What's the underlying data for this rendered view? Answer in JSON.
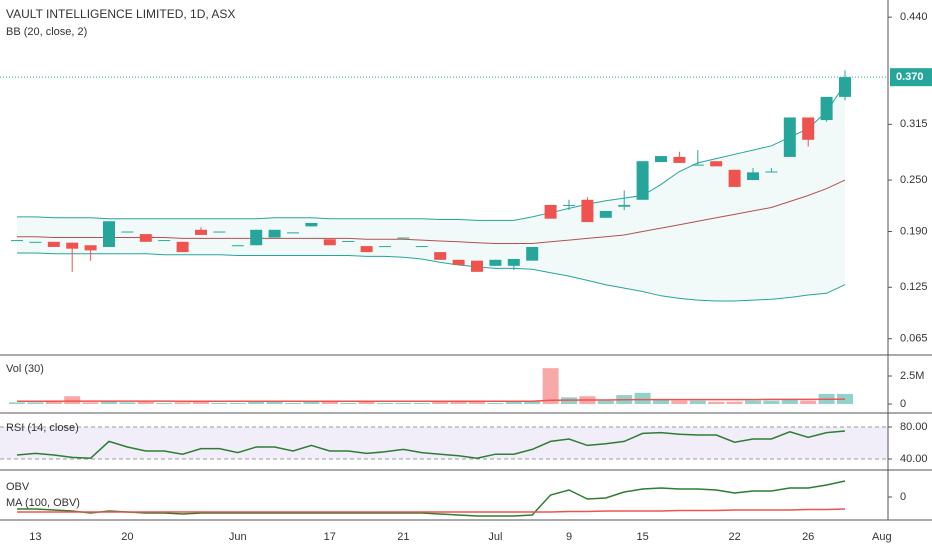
{
  "chart_data": [
    {
      "type": "candlestick",
      "title": "VAULT INTELLIGENCE LIMITED, 1D, ASX",
      "categories": [
        null,
        "13",
        null,
        null,
        null,
        null,
        "20",
        null,
        null,
        null,
        null,
        null,
        "Jun",
        null,
        null,
        null,
        null,
        "17",
        null,
        null,
        null,
        "21",
        null,
        null,
        null,
        null,
        "Jul",
        null,
        null,
        null,
        "9",
        null,
        null,
        null,
        "15",
        null,
        null,
        null,
        null,
        "22",
        null,
        null,
        null,
        "26",
        null,
        null
      ],
      "x_end_label": "Aug",
      "open": [
        0.18,
        0.178,
        0.178,
        0.177,
        0.174,
        0.172,
        0.19,
        0.187,
        0.18,
        0.178,
        0.192,
        0.19,
        0.174,
        0.174,
        0.183,
        0.189,
        0.196,
        0.181,
        0.179,
        0.173,
        0.173,
        0.183,
        0.173,
        0.166,
        0.157,
        0.156,
        0.15,
        0.15,
        0.156,
        0.221,
        0.221,
        0.227,
        0.206,
        0.219,
        0.227,
        0.271,
        0.277,
        0.268,
        0.272,
        0.262,
        0.25,
        0.26,
        0.277,
        0.323,
        0.32,
        0.347
      ],
      "high": [
        0.18,
        0.178,
        0.178,
        0.177,
        0.174,
        0.202,
        0.19,
        0.187,
        0.18,
        0.178,
        0.195,
        0.19,
        0.174,
        0.192,
        0.192,
        0.189,
        0.2,
        0.181,
        0.179,
        0.173,
        0.173,
        0.183,
        0.173,
        0.166,
        0.157,
        0.156,
        0.157,
        0.158,
        0.172,
        0.221,
        0.227,
        0.23,
        0.214,
        0.238,
        0.272,
        0.278,
        0.283,
        0.285,
        0.272,
        0.262,
        0.264,
        0.264,
        0.323,
        0.323,
        0.347,
        0.378
      ],
      "low": [
        0.18,
        0.178,
        0.172,
        0.143,
        0.156,
        0.172,
        0.19,
        0.178,
        0.18,
        0.166,
        0.186,
        0.19,
        0.174,
        0.174,
        0.183,
        0.189,
        0.196,
        0.174,
        0.179,
        0.166,
        0.173,
        0.183,
        0.173,
        0.157,
        0.151,
        0.143,
        0.15,
        0.145,
        0.156,
        0.205,
        0.215,
        0.201,
        0.206,
        0.215,
        0.227,
        0.271,
        0.27,
        0.268,
        0.266,
        0.242,
        0.25,
        0.26,
        0.277,
        0.289,
        0.318,
        0.343
      ],
      "close": [
        0.18,
        0.178,
        0.172,
        0.17,
        0.168,
        0.202,
        0.19,
        0.178,
        0.18,
        0.166,
        0.186,
        0.19,
        0.174,
        0.192,
        0.192,
        0.189,
        0.2,
        0.174,
        0.179,
        0.166,
        0.173,
        0.183,
        0.173,
        0.157,
        0.151,
        0.143,
        0.157,
        0.158,
        0.172,
        0.205,
        0.221,
        0.201,
        0.214,
        0.221,
        0.272,
        0.278,
        0.27,
        0.268,
        0.266,
        0.242,
        0.259,
        0.26,
        0.323,
        0.297,
        0.347,
        0.37
      ],
      "up_color": "#26a69a",
      "down_color": "#ef5350",
      "overlay": {
        "label": "BB (20, close, 2)",
        "band_color": "#26a69a",
        "basis_color": "#b2514f",
        "upper": [
          0.207,
          0.207,
          0.206,
          0.206,
          0.206,
          0.205,
          0.205,
          0.205,
          0.205,
          0.205,
          0.205,
          0.205,
          0.205,
          0.205,
          0.206,
          0.206,
          0.206,
          0.205,
          0.205,
          0.205,
          0.205,
          0.205,
          0.205,
          0.204,
          0.204,
          0.203,
          0.203,
          0.203,
          0.207,
          0.212,
          0.217,
          0.222,
          0.226,
          0.229,
          0.232,
          0.245,
          0.26,
          0.27,
          0.275,
          0.28,
          0.285,
          0.29,
          0.3,
          0.31,
          0.33,
          0.362
        ],
        "basis": [
          0.184,
          0.184,
          0.183,
          0.183,
          0.183,
          0.183,
          0.183,
          0.183,
          0.183,
          0.182,
          0.182,
          0.182,
          0.182,
          0.182,
          0.182,
          0.182,
          0.182,
          0.182,
          0.182,
          0.181,
          0.181,
          0.181,
          0.18,
          0.179,
          0.178,
          0.177,
          0.176,
          0.176,
          0.176,
          0.178,
          0.18,
          0.182,
          0.184,
          0.186,
          0.19,
          0.194,
          0.198,
          0.202,
          0.206,
          0.21,
          0.214,
          0.218,
          0.225,
          0.232,
          0.24,
          0.25
        ],
        "lower": [
          0.165,
          0.165,
          0.164,
          0.164,
          0.164,
          0.164,
          0.164,
          0.164,
          0.163,
          0.163,
          0.163,
          0.163,
          0.162,
          0.162,
          0.162,
          0.162,
          0.162,
          0.162,
          0.162,
          0.161,
          0.161,
          0.16,
          0.158,
          0.154,
          0.151,
          0.149,
          0.147,
          0.147,
          0.146,
          0.142,
          0.138,
          0.133,
          0.128,
          0.124,
          0.12,
          0.115,
          0.112,
          0.11,
          0.109,
          0.109,
          0.11,
          0.111,
          0.113,
          0.116,
          0.118,
          0.128
        ]
      },
      "ylim": [
        0.046,
        0.46
      ],
      "yticks": [
        0.065,
        0.125,
        {
          "value": 0.19,
          "label": "0.190"
        },
        {
          "value": 0.25,
          "label": "0.250"
        },
        0.315,
        {
          "value": 0.44,
          "label": "0.440"
        }
      ],
      "last_price": {
        "value": 0.37,
        "label": "0.370"
      }
    },
    {
      "type": "bar",
      "title": "Vol (30)",
      "values": [
        150000,
        150000,
        200000,
        700000,
        150000,
        300000,
        150000,
        200000,
        100000,
        150000,
        200000,
        100000,
        100000,
        200000,
        200000,
        100000,
        200000,
        200000,
        100000,
        200000,
        100000,
        100000,
        100000,
        200000,
        200000,
        200000,
        100000,
        200000,
        300000,
        3200000,
        600000,
        700000,
        300000,
        800000,
        1000000,
        400000,
        300000,
        300000,
        200000,
        200000,
        300000,
        300000,
        400000,
        300000,
        900000,
        900000
      ],
      "ma_values": [
        250000,
        250000,
        250000,
        260000,
        260000,
        260000,
        260000,
        260000,
        260000,
        250000,
        250000,
        250000,
        250000,
        250000,
        250000,
        250000,
        240000,
        240000,
        240000,
        240000,
        240000,
        240000,
        240000,
        240000,
        240000,
        240000,
        240000,
        240000,
        240000,
        340000,
        350000,
        360000,
        360000,
        380000,
        400000,
        400000,
        400000,
        400000,
        400000,
        400000,
        400000,
        410000,
        410000,
        410000,
        430000,
        440000
      ],
      "ma_color": "#ef5350",
      "up_color": "#26a69a",
      "down_color": "#ef5350",
      "ylim": [
        -800000,
        4375000
      ],
      "yticks": [
        0,
        {
          "value": 2500000,
          "label": "2.5M"
        }
      ]
    },
    {
      "type": "line",
      "title": "RSI (14, close)",
      "color": "#2e7d32",
      "band_color": "#7e57c2",
      "values": [
        45,
        47,
        45,
        42,
        41,
        62,
        55,
        50,
        50,
        46,
        53,
        53,
        48,
        55,
        55,
        50,
        57,
        50,
        50,
        47,
        49,
        52,
        48,
        46,
        44,
        41,
        46,
        46,
        52,
        62,
        65,
        57,
        59,
        62,
        72,
        73,
        71,
        70,
        70,
        61,
        65,
        65,
        74,
        67,
        73,
        75
      ],
      "ylim": [
        26.25,
        97.5
      ],
      "yticks": [
        {
          "value": 40,
          "label": "40.00"
        },
        {
          "value": 80,
          "label": "80.00"
        }
      ]
    },
    {
      "type": "line",
      "series": [
        {
          "name": "OBV",
          "color": "#2e7d32",
          "values": [
            -1200000,
            -1200000,
            -1300000,
            -1400000,
            -1600000,
            -1400000,
            -1500000,
            -1600000,
            -1600000,
            -1700000,
            -1600000,
            -1600000,
            -1600000,
            -1600000,
            -1600000,
            -1600000,
            -1600000,
            -1600000,
            -1600000,
            -1600000,
            -1600000,
            -1600000,
            -1600000,
            -1700000,
            -1800000,
            -1900000,
            -1900000,
            -1900000,
            -1800000,
            200000,
            700000,
            -200000,
            -100000,
            500000,
            800000,
            900000,
            800000,
            800000,
            700000,
            400000,
            600000,
            600000,
            900000,
            900000,
            1200000,
            1600000
          ]
        },
        {
          "name": "MA (100, OBV)",
          "color": "#ef5350",
          "values": [
            -1500000,
            -1500000,
            -1500000,
            -1500000,
            -1500000,
            -1500000,
            -1500000,
            -1500000,
            -1500000,
            -1500000,
            -1500000,
            -1500000,
            -1500000,
            -1500000,
            -1500000,
            -1500000,
            -1500000,
            -1500000,
            -1500000,
            -1500000,
            -1500000,
            -1500000,
            -1500000,
            -1500000,
            -1500000,
            -1500000,
            -1500000,
            -1500000,
            -1500000,
            -1500000,
            -1450000,
            -1450000,
            -1400000,
            -1400000,
            -1400000,
            -1400000,
            -1350000,
            -1350000,
            -1350000,
            -1300000,
            -1300000,
            -1300000,
            -1300000,
            -1250000,
            -1250000,
            -1200000
          ]
        }
      ],
      "ylim": [
        -2300000,
        2700000
      ],
      "yticks": [
        0
      ]
    }
  ]
}
